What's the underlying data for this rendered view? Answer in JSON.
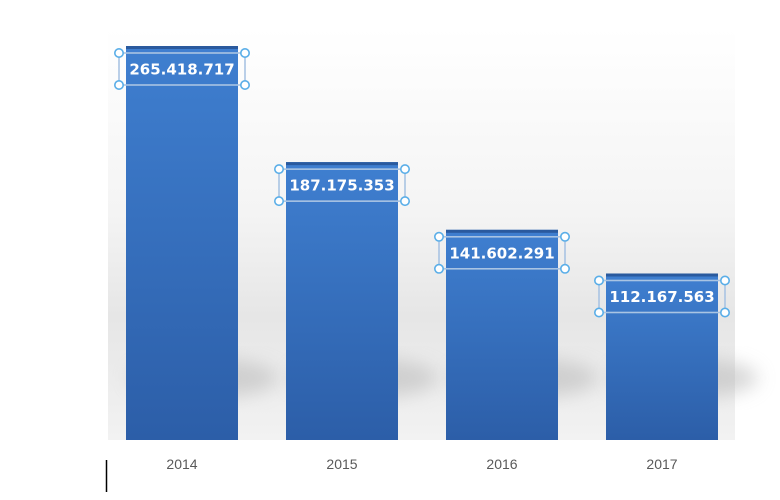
{
  "chart_data": {
    "type": "bar",
    "title": "",
    "xlabel": "",
    "ylabel": "",
    "categories": [
      "2014",
      "2015",
      "2016",
      "2017"
    ],
    "values": [
      265418717,
      187175353,
      141602291,
      112167563
    ],
    "data_labels": [
      "265.418.717",
      "187.175.353",
      "141.602.291",
      "112.167.563"
    ],
    "ylim": [
      0,
      265418717
    ],
    "grid": false,
    "legend": "none",
    "colors": {
      "bar_top": "#3f7fd0",
      "bar_bottom": "#2c5ea8",
      "label_border": "#a9c4e3",
      "handle": "#5aaee8",
      "tick_text": "#595959"
    }
  }
}
